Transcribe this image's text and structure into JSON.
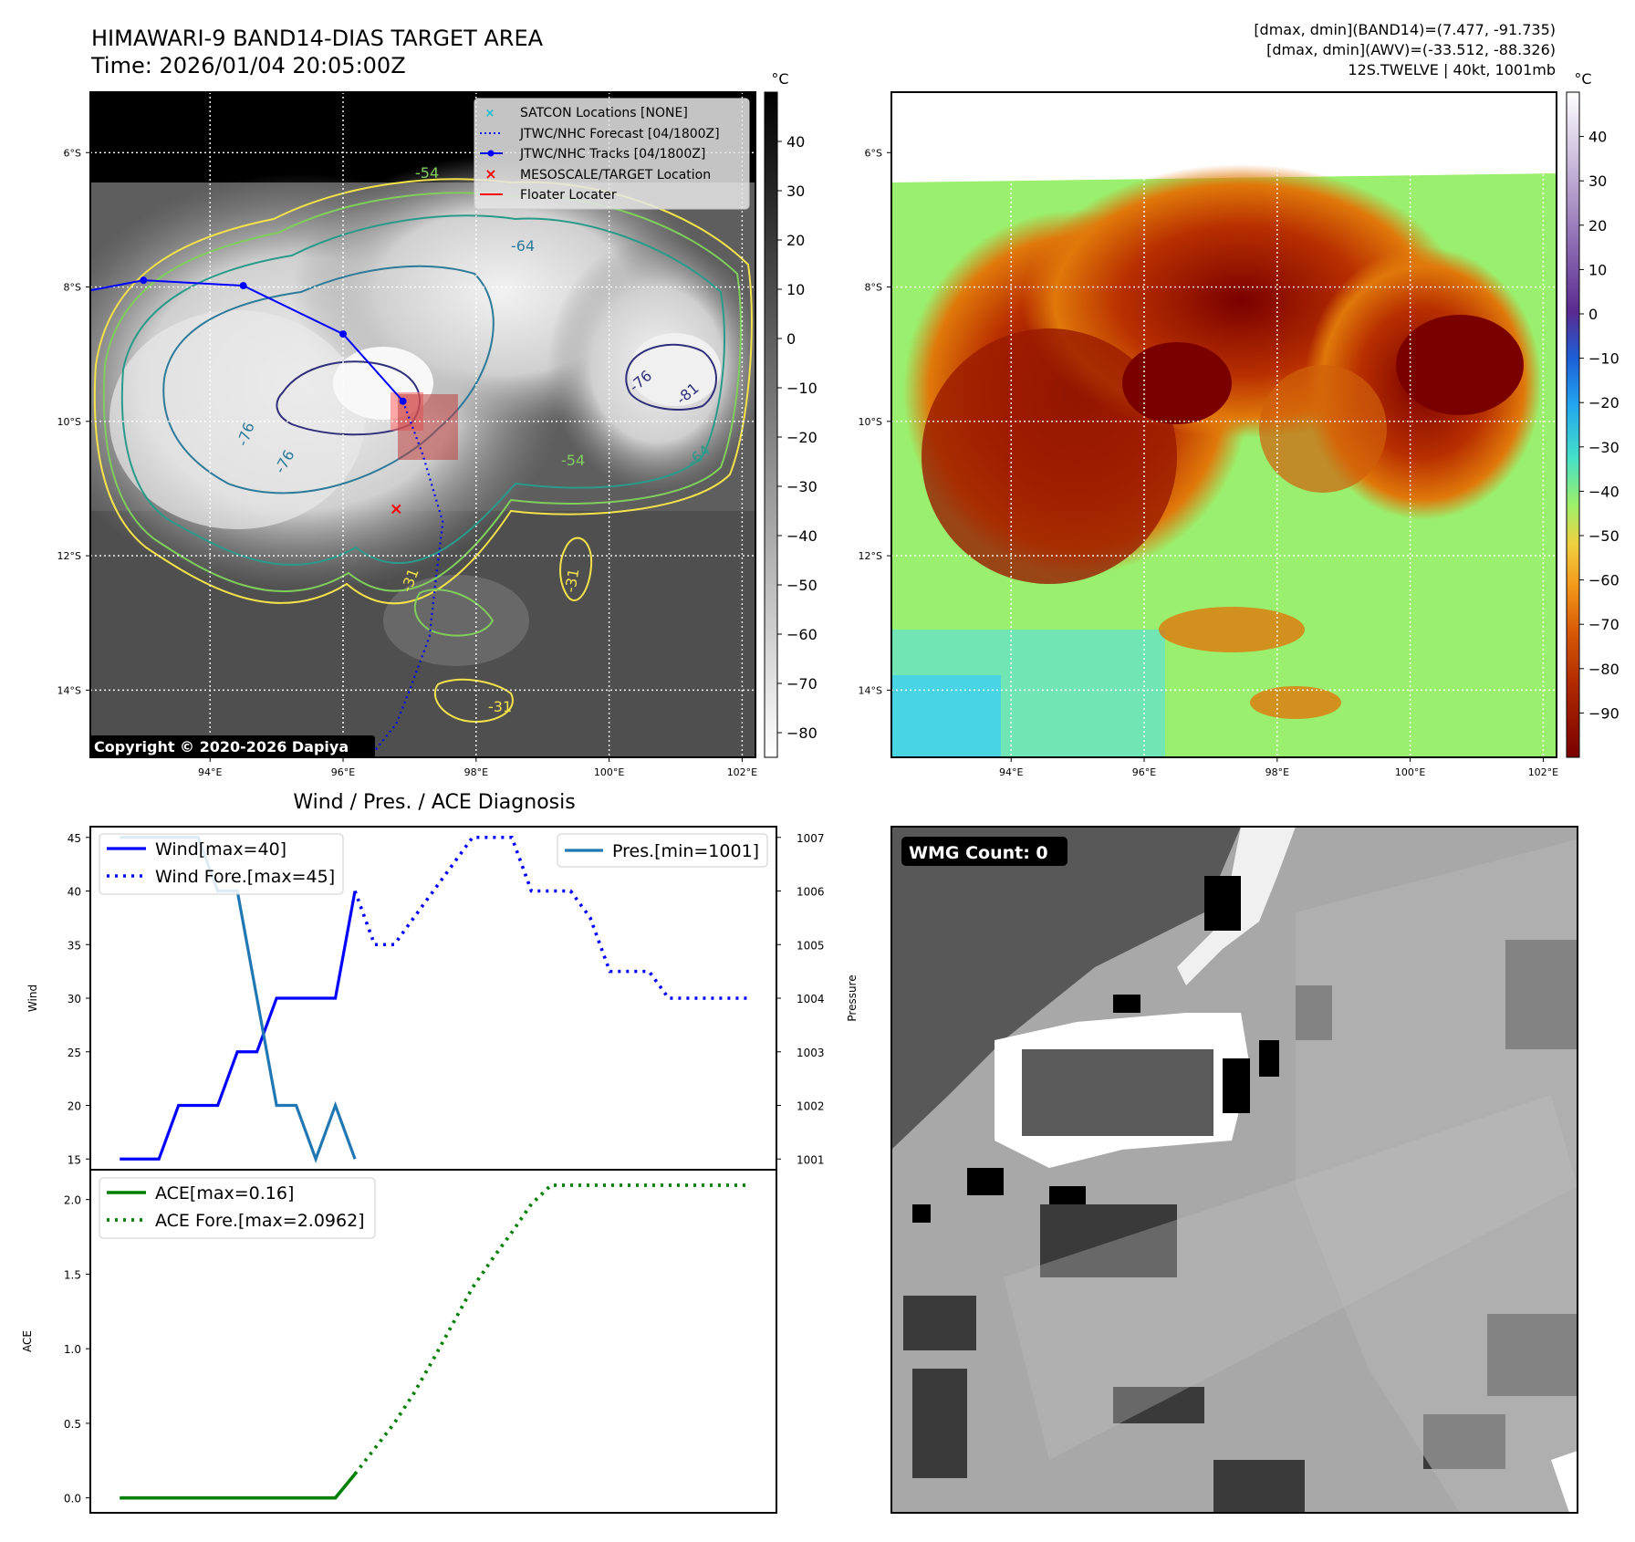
{
  "header": {
    "title_line1": "HIMAWARI-9 BAND14-DIAS TARGET AREA",
    "title_line2": "Time: 2026/01/04 20:05:00Z",
    "info_line1": "[dmax, dmin](BAND14)=(7.477, -91.735)",
    "info_line2": "[dmax, dmin](AWV)=(-33.512, -88.326)",
    "info_line3": "12S.TWELVE | 40kt, 1001mb"
  },
  "map_axes": {
    "lat_labels": [
      "6°S",
      "8°S",
      "10°S",
      "12°S",
      "14°S"
    ],
    "lat_values": [
      -6,
      -8,
      -10,
      -12,
      -14
    ],
    "lon_labels": [
      "94°E",
      "96°E",
      "98°E",
      "100°E",
      "102°E"
    ],
    "lon_values": [
      94,
      96,
      98,
      100,
      102
    ],
    "lon_range": [
      92.2,
      102.2
    ],
    "lat_range": [
      -15.0,
      -5.1
    ]
  },
  "ir_panel": {
    "copyright": "Copyright © 2020-2026 Dapiya",
    "legend": [
      {
        "label": "SATCON Locations [NONE]",
        "marker": "x",
        "color": "#17becf"
      },
      {
        "label": "JTWC/NHC Forecast [04/1800Z]",
        "marker": "dotted-line",
        "color": "#0000ff"
      },
      {
        "label": "JTWC/NHC Tracks [04/1800Z]",
        "marker": "line-dot",
        "color": "#0000ff"
      },
      {
        "label": "MESOSCALE/TARGET Location",
        "marker": "x",
        "color": "#ff0000"
      },
      {
        "label": "Floater Locater",
        "marker": "line",
        "color": "#ff0000"
      }
    ],
    "contour_labels": [
      "-54",
      "-64",
      "-76",
      "-81",
      "-76",
      "-64",
      "-76",
      "-31",
      "-31",
      "-31",
      "-54"
    ],
    "track": {
      "lon": [
        92.2,
        93.0,
        94.5,
        96.0,
        96.9
      ],
      "lat": [
        -8.05,
        -7.9,
        -7.98,
        -8.7,
        -9.7
      ]
    },
    "forecast": {
      "lon": [
        96.9,
        97.2,
        97.5,
        97.4,
        97.3,
        97.0,
        96.8,
        96.4
      ],
      "lat": [
        -9.7,
        -10.5,
        -11.5,
        -12.3,
        -13.2,
        -14.0,
        -14.5,
        -15.0
      ]
    },
    "target": {
      "lon": 96.8,
      "lat": -11.3
    },
    "colorbar_unit": "°C",
    "colorbar_ticks": [
      "40",
      "30",
      "20",
      "10",
      "0",
      "−10",
      "−20",
      "−30",
      "−40",
      "−50",
      "−60",
      "−70",
      "−80"
    ],
    "colorbar_values": [
      40,
      30,
      20,
      10,
      0,
      -10,
      -20,
      -30,
      -40,
      -50,
      -60,
      -70,
      -80
    ],
    "colorbar_range": [
      -85,
      50
    ]
  },
  "awv_panel": {
    "colorbar_unit": "°C",
    "colorbar_ticks": [
      "40",
      "30",
      "20",
      "10",
      "0",
      "−10",
      "−20",
      "−30",
      "−40",
      "−50",
      "−60",
      "−70",
      "−80",
      "−90"
    ],
    "colorbar_values": [
      40,
      30,
      20,
      10,
      0,
      -10,
      -20,
      -30,
      -40,
      -50,
      -60,
      -70,
      -80,
      -90
    ],
    "colorbar_range": [
      -100,
      50
    ]
  },
  "wmg_panel": {
    "label": "WMG Count: 0"
  },
  "chart_data": [
    {
      "type": "line",
      "title": "Wind / Pres. / ACE Diagnosis",
      "ylabel": "Wind",
      "y2label": "Pressure",
      "ylim": [
        14,
        46
      ],
      "y2lim": [
        1000.8,
        1007.2
      ],
      "yticks": [
        15,
        20,
        25,
        30,
        35,
        40,
        45
      ],
      "y2ticks": [
        1001,
        1002,
        1003,
        1004,
        1005,
        1006,
        1007
      ],
      "xlim": [
        -1.5,
        33.5
      ],
      "legend_left": [
        "Wind[max=40]",
        "Wind Fore.[max=45]"
      ],
      "legend_right": [
        "Pres.[min=1001]"
      ],
      "series": [
        {
          "name": "Wind[max=40]",
          "axis": "left",
          "style": "solid",
          "color": "#0000ff",
          "x": [
            0,
            2,
            3,
            5,
            6,
            7,
            8,
            9,
            10,
            11,
            12
          ],
          "values": [
            15,
            15,
            20,
            20,
            25,
            25,
            30,
            30,
            30,
            30,
            40
          ]
        },
        {
          "name": "Wind Fore.[max=45]",
          "axis": "left",
          "style": "dotted",
          "color": "#0000ff",
          "x": [
            12,
            13,
            14,
            15,
            16,
            17,
            18,
            19,
            20,
            21,
            22,
            23,
            24,
            25,
            26,
            27,
            28,
            29,
            30,
            31,
            32
          ],
          "values": [
            40,
            35,
            35,
            37.5,
            40,
            42.5,
            45,
            45,
            45,
            40,
            40,
            40,
            37.5,
            32.5,
            32.5,
            32.5,
            30,
            30,
            30,
            30,
            30
          ]
        },
        {
          "name": "Pres.[min=1001]",
          "axis": "right",
          "style": "solid",
          "color": "#1f77b4",
          "x": [
            0,
            1,
            2,
            3,
            4,
            5,
            6,
            7,
            8,
            9,
            10,
            11,
            12
          ],
          "values": [
            1007,
            1007,
            1007,
            1007,
            1007,
            1006,
            1006,
            1004,
            1002,
            1002,
            1001,
            1002,
            1001
          ]
        }
      ]
    },
    {
      "type": "line",
      "ylabel": "ACE",
      "ylim": [
        -0.1,
        2.2
      ],
      "yticks": [
        0.0,
        0.5,
        1.0,
        1.5,
        2.0
      ],
      "ytick_labels": [
        "0.0",
        "0.5",
        "1.0",
        "1.5",
        "2.0"
      ],
      "xlim": [
        -1.5,
        33.5
      ],
      "legend": [
        "ACE[max=0.16]",
        "ACE Fore.[max=2.0962]"
      ],
      "series": [
        {
          "name": "ACE[max=0.16]",
          "style": "solid",
          "color": "#008000",
          "x": [
            0,
            11,
            12
          ],
          "values": [
            0,
            0,
            0.16
          ]
        },
        {
          "name": "ACE Fore.[max=2.0962]",
          "style": "dotted",
          "color": "#008000",
          "x": [
            12,
            13,
            14,
            15,
            16,
            17,
            18,
            19,
            20,
            21,
            22,
            23,
            24,
            32
          ],
          "values": [
            0.16,
            0.33,
            0.5,
            0.7,
            0.93,
            1.17,
            1.41,
            1.6,
            1.78,
            1.97,
            2.0962,
            2.0962,
            2.0962,
            2.0962
          ]
        }
      ]
    }
  ]
}
